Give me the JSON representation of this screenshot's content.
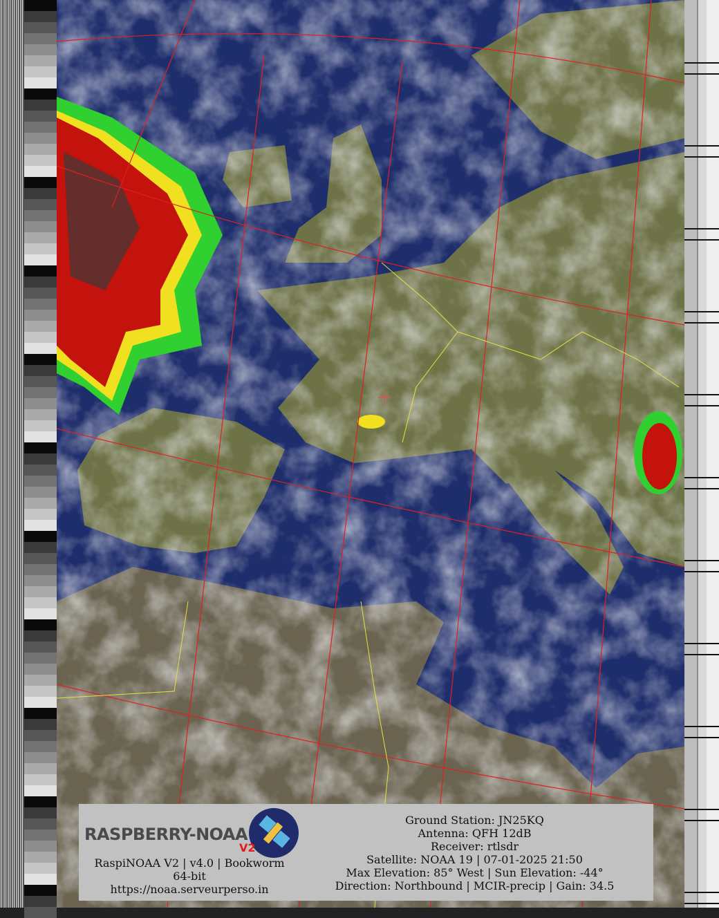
{
  "image": {
    "type": "NOAA APT satellite weather image (MCIR-precip)",
    "colors": {
      "ocean": "#1e2d6b",
      "land": "#6e7247",
      "desert": "#6a6350",
      "cloud": "#c9cbd0",
      "precip_red": "#c4120c",
      "precip_yellow": "#f0e020",
      "precip_green": "#30d030",
      "grid": "#e02020",
      "borders": "#e8e040",
      "coast": "#a8f0a0"
    }
  },
  "logo": {
    "text": "RASPBERRY-NOAA",
    "badge": "V2"
  },
  "footer": {
    "software": "RaspiNOAA V2 | v4.0 | Bookworm 64-bit",
    "url": "https://noaa.serveurperso.in",
    "ground_station": "Ground Station: JN25KQ",
    "antenna": "Antenna: QFH 12dB",
    "receiver": "Receiver: rtlsdr",
    "satellite": "Satellite: NOAA 19 | 07-01-2025 21:50",
    "elevation": "Max Elevation: 85° West | Sun Elevation: -44°",
    "direction": "Direction: Northbound | MCIR-precip | Gain: 34.5"
  }
}
